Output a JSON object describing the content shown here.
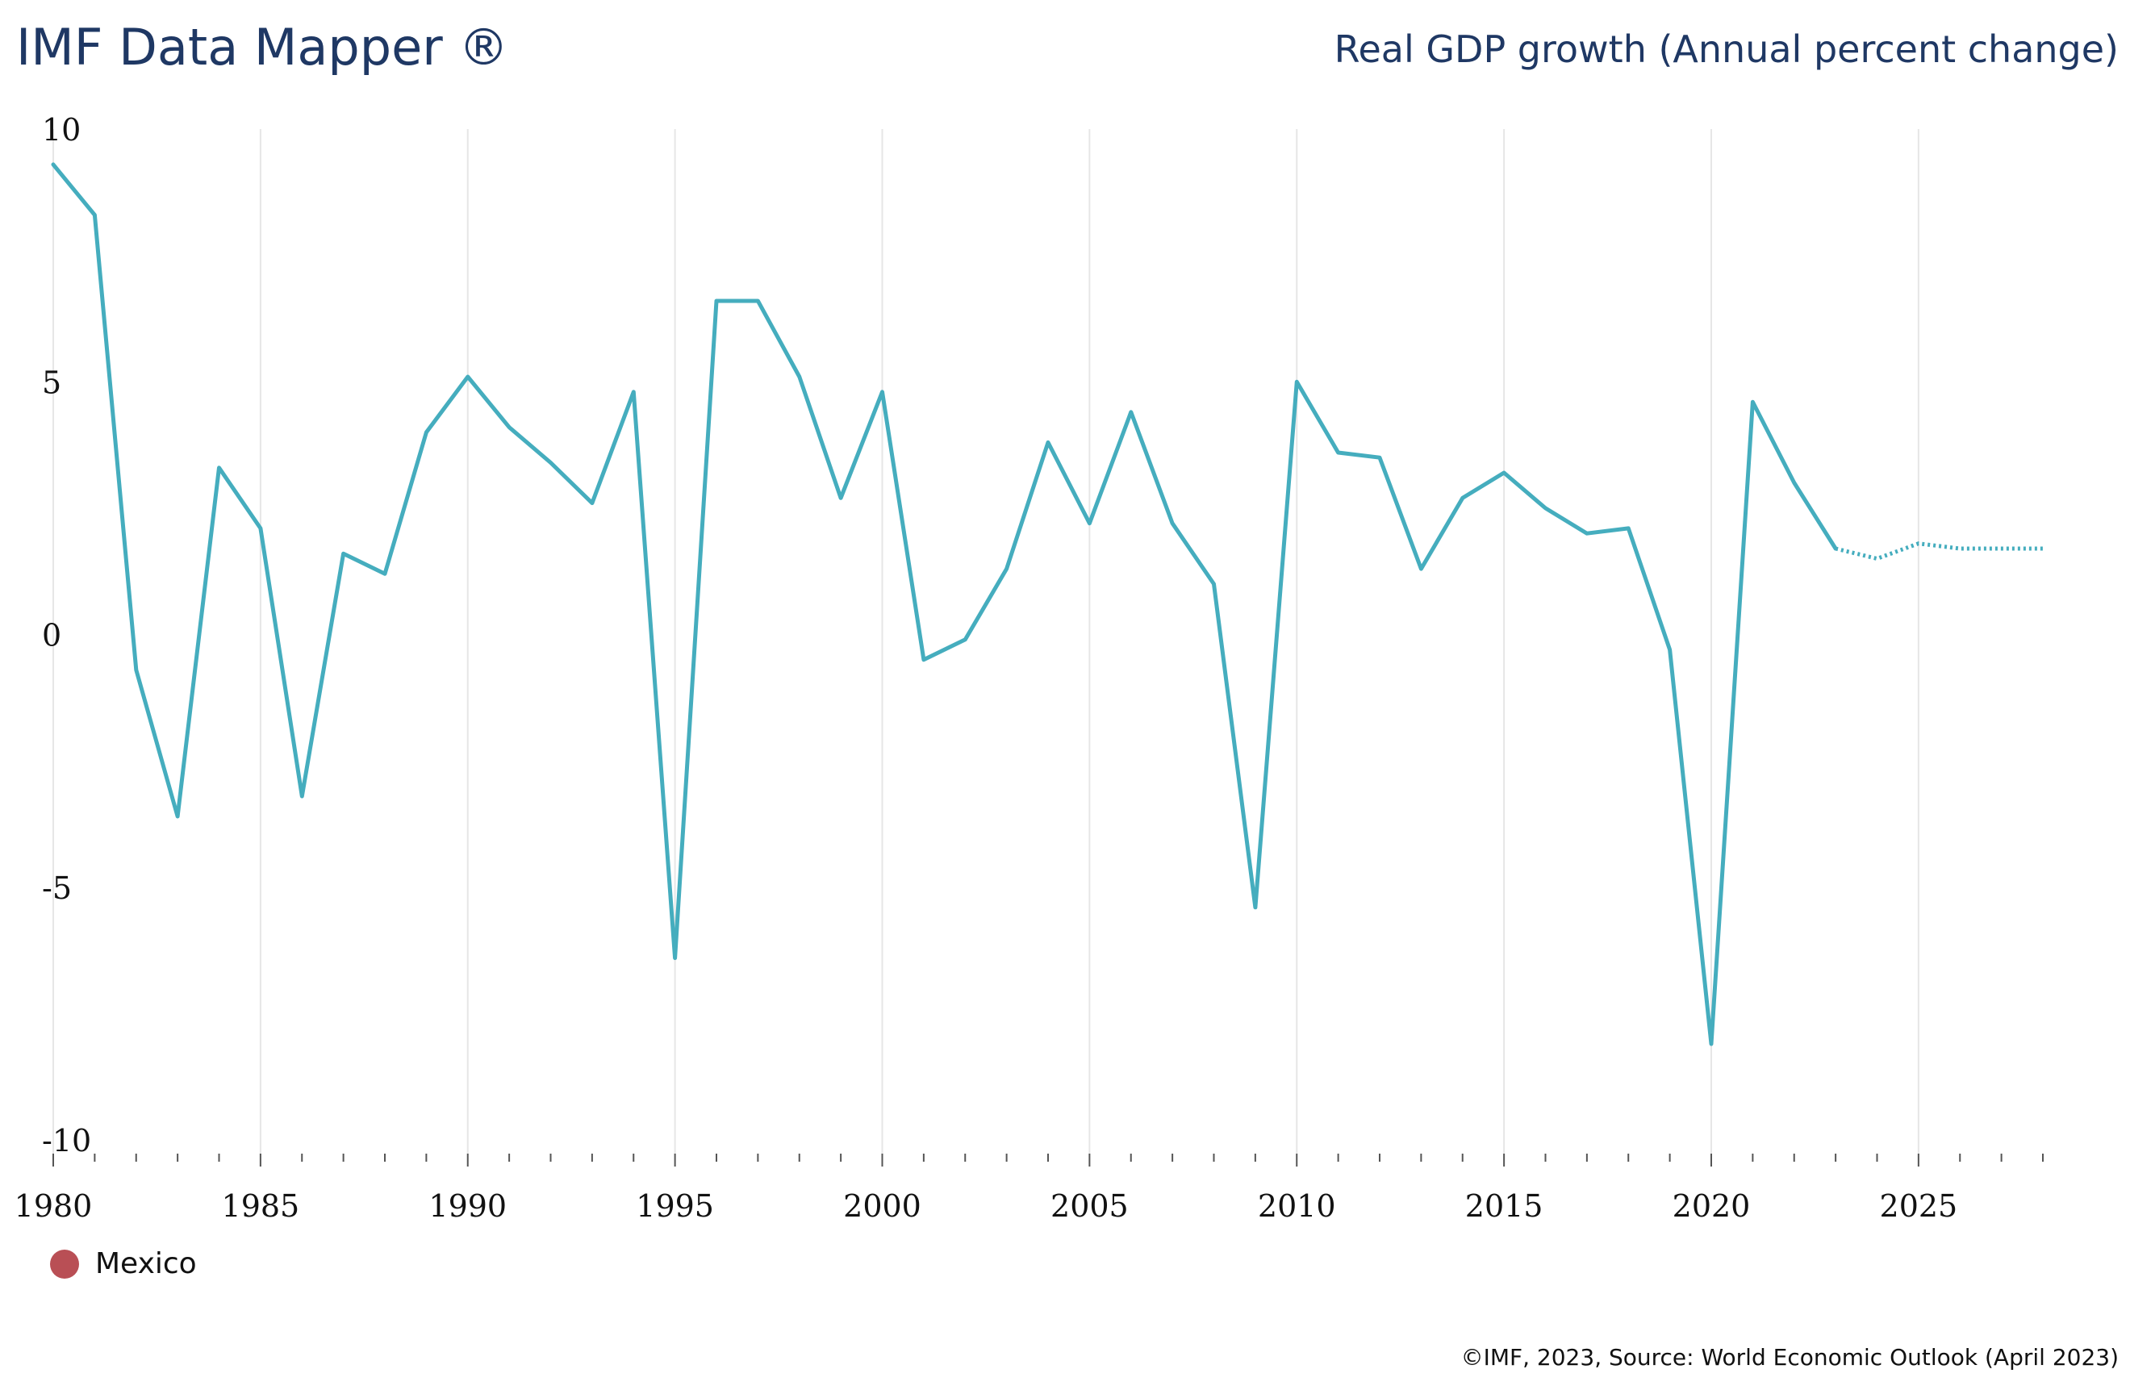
{
  "header": {
    "brand": "IMF Data Mapper ®",
    "indicator": "Real GDP growth (Annual percent change)"
  },
  "legend": {
    "label": "Mexico",
    "color": "#b94f55"
  },
  "footer": {
    "source": "©IMF, 2023, Source: World Economic Outlook (April 2023)"
  },
  "colors": {
    "line": "#45adbe",
    "grid": "#e6e6e6"
  },
  "chart_data": {
    "type": "line",
    "title": "Real GDP growth (Annual percent change)",
    "xlabel": "",
    "ylabel": "",
    "xlim": [
      1980,
      2028
    ],
    "ylim": [
      -10,
      10
    ],
    "yticks": [
      10,
      5,
      0,
      -5,
      -10
    ],
    "xticks": [
      1980,
      1985,
      1990,
      1995,
      2000,
      2005,
      2010,
      2015,
      2020,
      2025
    ],
    "grid": "vertical",
    "legend_position": "bottom-left",
    "forecast_start": 2023,
    "series": [
      {
        "name": "Mexico",
        "x": [
          1980,
          1981,
          1982,
          1983,
          1984,
          1985,
          1986,
          1987,
          1988,
          1989,
          1990,
          1991,
          1992,
          1993,
          1994,
          1995,
          1996,
          1997,
          1998,
          1999,
          2000,
          2001,
          2002,
          2003,
          2004,
          2005,
          2006,
          2007,
          2008,
          2009,
          2010,
          2011,
          2012,
          2013,
          2014,
          2015,
          2016,
          2017,
          2018,
          2019,
          2020,
          2021,
          2022,
          2023,
          2024,
          2025,
          2026,
          2027,
          2028
        ],
        "values": [
          9.3,
          8.3,
          -0.7,
          -3.6,
          3.3,
          2.1,
          -3.2,
          1.6,
          1.2,
          4.0,
          5.1,
          4.1,
          3.4,
          2.6,
          4.8,
          -6.4,
          6.6,
          6.6,
          5.1,
          2.7,
          4.8,
          -0.5,
          -0.1,
          1.3,
          3.8,
          2.2,
          4.4,
          2.2,
          1.0,
          -5.4,
          5.0,
          3.6,
          3.5,
          1.3,
          2.7,
          3.2,
          2.5,
          2.0,
          2.1,
          -0.3,
          -8.1,
          4.6,
          3.0,
          1.7,
          1.5,
          1.8,
          1.7,
          1.7,
          1.7
        ]
      }
    ]
  }
}
